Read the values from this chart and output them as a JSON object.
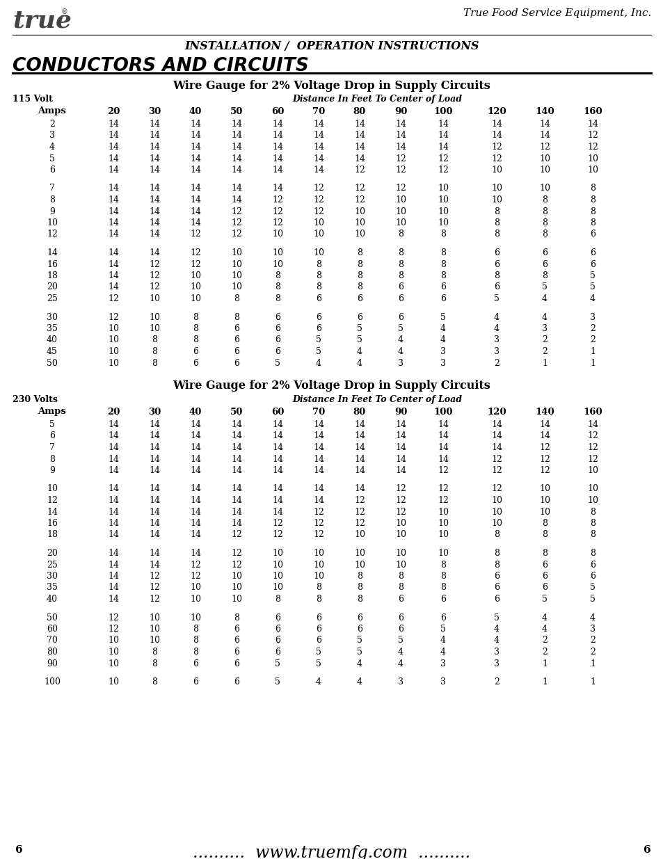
{
  "title1": "Wire Gauge for 2% Voltage Drop in Supply Circuits",
  "title2": "Wire Gauge for 2% Voltage Drop in Supply Circuits",
  "header_company": "True Food Service Equipment, Inc.",
  "header_install": "INSTALLATION /  OPERATION INSTRUCTIONS",
  "section_title": "CONDUCTORS AND CIRCUITS",
  "distance_label": "Distance In Feet To Center of Load",
  "col_headers": [
    "20",
    "30",
    "40",
    "50",
    "60",
    "70",
    "80",
    "90",
    "100",
    "120",
    "140",
    "160"
  ],
  "volt115_label": "115 Volt",
  "volt115_amps_label": "Amps",
  "volt115_amps": [
    2,
    3,
    4,
    5,
    6,
    7,
    8,
    9,
    10,
    12,
    14,
    16,
    18,
    20,
    25,
    30,
    35,
    40,
    45,
    50
  ],
  "volt115_data": [
    [
      14,
      14,
      14,
      14,
      14,
      14,
      14,
      14,
      14,
      14,
      14,
      14
    ],
    [
      14,
      14,
      14,
      14,
      14,
      14,
      14,
      14,
      14,
      14,
      14,
      12
    ],
    [
      14,
      14,
      14,
      14,
      14,
      14,
      14,
      14,
      14,
      12,
      12,
      12
    ],
    [
      14,
      14,
      14,
      14,
      14,
      14,
      14,
      12,
      12,
      12,
      10,
      10
    ],
    [
      14,
      14,
      14,
      14,
      14,
      14,
      12,
      12,
      12,
      10,
      10,
      10
    ],
    [
      14,
      14,
      14,
      14,
      14,
      12,
      12,
      12,
      10,
      10,
      10,
      8
    ],
    [
      14,
      14,
      14,
      14,
      12,
      12,
      12,
      10,
      10,
      10,
      8,
      8
    ],
    [
      14,
      14,
      14,
      12,
      12,
      12,
      10,
      10,
      10,
      8,
      8,
      8
    ],
    [
      14,
      14,
      14,
      12,
      12,
      10,
      10,
      10,
      10,
      8,
      8,
      8
    ],
    [
      14,
      14,
      12,
      12,
      10,
      10,
      10,
      8,
      8,
      8,
      8,
      6
    ],
    [
      14,
      14,
      12,
      10,
      10,
      10,
      8,
      8,
      8,
      6,
      6,
      6
    ],
    [
      14,
      12,
      12,
      10,
      10,
      8,
      8,
      8,
      8,
      6,
      6,
      6
    ],
    [
      14,
      12,
      10,
      10,
      8,
      8,
      8,
      8,
      8,
      8,
      8,
      5
    ],
    [
      14,
      12,
      10,
      10,
      8,
      8,
      8,
      6,
      6,
      6,
      5,
      5
    ],
    [
      12,
      10,
      10,
      8,
      8,
      6,
      6,
      6,
      6,
      5,
      4,
      4
    ],
    [
      12,
      10,
      8,
      8,
      6,
      6,
      6,
      6,
      5,
      4,
      4,
      3
    ],
    [
      10,
      10,
      8,
      6,
      6,
      6,
      5,
      5,
      4,
      4,
      3,
      2
    ],
    [
      10,
      8,
      8,
      6,
      6,
      5,
      5,
      4,
      4,
      3,
      2,
      2
    ],
    [
      10,
      8,
      6,
      6,
      6,
      5,
      4,
      4,
      3,
      3,
      2,
      1
    ],
    [
      10,
      8,
      6,
      6,
      5,
      4,
      4,
      3,
      3,
      2,
      1,
      1
    ]
  ],
  "volt230_label": "230 Volts",
  "volt230_amps_label": "Amps",
  "volt230_amps": [
    5,
    6,
    7,
    8,
    9,
    10,
    12,
    14,
    16,
    18,
    20,
    25,
    30,
    35,
    40,
    50,
    60,
    70,
    80,
    90,
    100
  ],
  "volt230_data": [
    [
      14,
      14,
      14,
      14,
      14,
      14,
      14,
      14,
      14,
      14,
      14,
      14
    ],
    [
      14,
      14,
      14,
      14,
      14,
      14,
      14,
      14,
      14,
      14,
      14,
      12
    ],
    [
      14,
      14,
      14,
      14,
      14,
      14,
      14,
      14,
      14,
      14,
      12,
      12
    ],
    [
      14,
      14,
      14,
      14,
      14,
      14,
      14,
      14,
      14,
      12,
      12,
      12
    ],
    [
      14,
      14,
      14,
      14,
      14,
      14,
      14,
      14,
      12,
      12,
      12,
      10
    ],
    [
      14,
      14,
      14,
      14,
      14,
      14,
      14,
      12,
      12,
      12,
      10,
      10
    ],
    [
      14,
      14,
      14,
      14,
      14,
      14,
      12,
      12,
      12,
      10,
      10,
      10
    ],
    [
      14,
      14,
      14,
      14,
      14,
      12,
      12,
      12,
      10,
      10,
      10,
      8
    ],
    [
      14,
      14,
      14,
      14,
      12,
      12,
      12,
      10,
      10,
      10,
      8,
      8
    ],
    [
      14,
      14,
      14,
      12,
      12,
      12,
      10,
      10,
      10,
      8,
      8,
      8
    ],
    [
      14,
      14,
      14,
      12,
      10,
      10,
      10,
      10,
      10,
      8,
      8,
      8
    ],
    [
      14,
      14,
      12,
      12,
      10,
      10,
      10,
      10,
      8,
      8,
      6,
      6
    ],
    [
      14,
      12,
      12,
      10,
      10,
      10,
      8,
      8,
      8,
      6,
      6,
      6
    ],
    [
      14,
      12,
      10,
      10,
      10,
      8,
      8,
      8,
      8,
      6,
      6,
      5
    ],
    [
      14,
      12,
      10,
      10,
      8,
      8,
      8,
      6,
      6,
      6,
      5,
      5
    ],
    [
      12,
      10,
      10,
      8,
      6,
      6,
      6,
      6,
      6,
      5,
      4,
      4
    ],
    [
      12,
      10,
      8,
      6,
      6,
      6,
      6,
      6,
      5,
      4,
      4,
      3
    ],
    [
      10,
      10,
      8,
      6,
      6,
      6,
      5,
      5,
      4,
      4,
      2,
      2
    ],
    [
      10,
      8,
      8,
      6,
      6,
      5,
      5,
      4,
      4,
      3,
      2,
      2
    ],
    [
      10,
      8,
      6,
      6,
      5,
      5,
      4,
      4,
      3,
      3,
      1,
      1
    ],
    [
      10,
      8,
      6,
      6,
      5,
      4,
      4,
      3,
      3,
      2,
      1,
      1
    ]
  ],
  "footer_url": "www.truemfg.com",
  "page_num": "6",
  "bg_color": "#ffffff"
}
